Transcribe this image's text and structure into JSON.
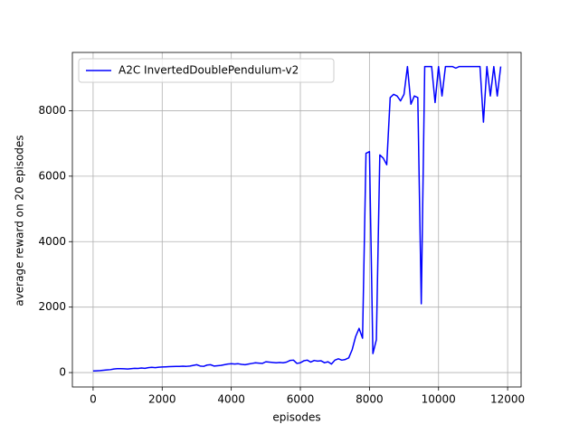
{
  "chart_data": {
    "type": "line",
    "xlabel": "episodes",
    "ylabel": "average reward on 20 episodes",
    "x": [
      0,
      100,
      200,
      300,
      400,
      500,
      600,
      700,
      800,
      900,
      1000,
      1100,
      1200,
      1300,
      1400,
      1500,
      1600,
      1700,
      1800,
      1900,
      2000,
      2100,
      2200,
      2300,
      2400,
      2500,
      2600,
      2700,
      2800,
      2900,
      3000,
      3100,
      3200,
      3300,
      3400,
      3500,
      3600,
      3700,
      3800,
      3900,
      4000,
      4100,
      4200,
      4300,
      4400,
      4500,
      4600,
      4700,
      4800,
      4900,
      5000,
      5100,
      5200,
      5300,
      5400,
      5500,
      5600,
      5700,
      5800,
      5900,
      6000,
      6100,
      6200,
      6300,
      6400,
      6500,
      6600,
      6700,
      6800,
      6900,
      7000,
      7100,
      7200,
      7300,
      7400,
      7500,
      7600,
      7700,
      7800,
      7900,
      8000,
      8100,
      8200,
      8300,
      8400,
      8500,
      8600,
      8700,
      8800,
      8900,
      9000,
      9100,
      9200,
      9300,
      9400,
      9500,
      9600,
      9700,
      9800,
      9900,
      10000,
      10100,
      10200,
      10300,
      10400,
      10500,
      10600,
      10700,
      10800,
      10900,
      11000,
      11100,
      11200,
      11300,
      11400,
      11500,
      11600,
      11700,
      11800
    ],
    "series": [
      {
        "name": "A2C InvertedDoublePendulum-v2",
        "color": "#0000ff",
        "values": [
          50,
          55,
          60,
          70,
          80,
          90,
          110,
          120,
          120,
          115,
          110,
          120,
          130,
          125,
          140,
          130,
          150,
          160,
          150,
          165,
          170,
          175,
          180,
          185,
          190,
          190,
          195,
          190,
          200,
          220,
          240,
          200,
          190,
          230,
          240,
          200,
          210,
          220,
          240,
          260,
          270,
          260,
          270,
          250,
          240,
          260,
          280,
          300,
          290,
          280,
          330,
          320,
          310,
          300,
          310,
          300,
          320,
          370,
          380,
          280,
          300,
          360,
          380,
          320,
          370,
          350,
          360,
          300,
          330,
          260,
          380,
          420,
          380,
          400,
          450,
          700,
          1100,
          1350,
          1050,
          6700,
          6750,
          580,
          1000,
          6650,
          6550,
          6350,
          8400,
          8500,
          8450,
          8300,
          8500,
          9350,
          8200,
          8450,
          8400,
          2100,
          9350,
          9350,
          9350,
          8250,
          9350,
          8450,
          9350,
          9350,
          9350,
          9300,
          9350,
          9350,
          9350,
          9350,
          9350,
          9350,
          9350,
          7650,
          9350,
          8450,
          9350,
          8450,
          9350
        ]
      }
    ],
    "xlim": [
      -600,
      12390
    ],
    "ylim": [
      -440,
      9780
    ],
    "xticks": [
      0,
      2000,
      4000,
      6000,
      8000,
      10000,
      12000
    ],
    "yticks": [
      0,
      2000,
      4000,
      6000,
      8000
    ],
    "grid": true,
    "legend": "upper-left"
  }
}
